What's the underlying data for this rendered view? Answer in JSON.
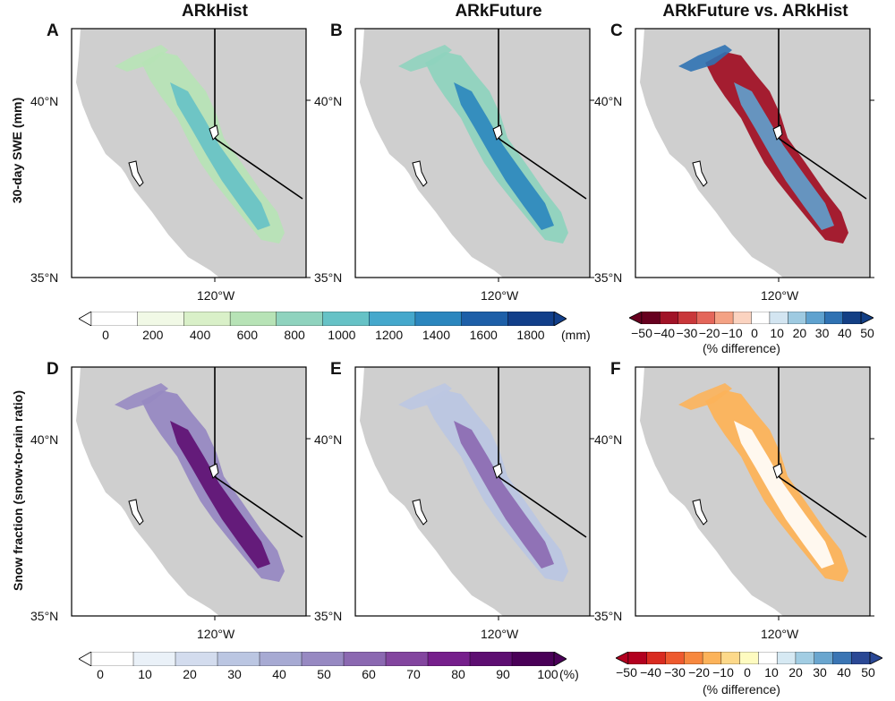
{
  "columns": [
    "ARkHist",
    "ARkFuture",
    "ARkFuture vs. ARkHist"
  ],
  "rows": [
    "30-day SWE (mm)",
    "Snow fraction (snow-to-rain ratio)"
  ],
  "panels": [
    {
      "letter": "A",
      "lat_top": "40°N",
      "lat_bottom": "35°N",
      "lon": "120°W",
      "palette": "swe",
      "level": 0.55
    },
    {
      "letter": "B",
      "lat_top": "40°N",
      "lat_bottom": "35°N",
      "lon": "120°W",
      "palette": "swe",
      "level": 0.8
    },
    {
      "letter": "C",
      "lat_top": "40°N",
      "lat_bottom": "35°N",
      "lon": "120°W",
      "palette": "diff_swe",
      "level": 0.5
    },
    {
      "letter": "D",
      "lat_top": "40°N",
      "lat_bottom": "35°N",
      "lon": "120°W",
      "palette": "frac",
      "level": 0.9
    },
    {
      "letter": "E",
      "lat_top": "40°N",
      "lat_bottom": "35°N",
      "lon": "120°W",
      "palette": "frac",
      "level": 0.55
    },
    {
      "letter": "F",
      "lat_top": "40°N",
      "lat_bottom": "35°N",
      "lon": "120°W",
      "palette": "diff_frac",
      "level": 0.3
    }
  ],
  "colorbars": {
    "swe": {
      "ticks": [
        "0",
        "200",
        "400",
        "600",
        "800",
        "1000",
        "1200",
        "1400",
        "1600",
        "1800"
      ],
      "unit": "(mm)",
      "colors": [
        "#ffffff",
        "#f1f9e6",
        "#d9f0c8",
        "#b7e3b6",
        "#8fd3be",
        "#66c2c6",
        "#45a8cc",
        "#2b86be",
        "#1d5fa8",
        "#123f8a"
      ]
    },
    "diff_swe": {
      "ticks": [
        "−50",
        "−40",
        "−30",
        "−20",
        "−10",
        "0",
        "10",
        "20",
        "30",
        "40",
        "50"
      ],
      "unit": "(% difference)",
      "colors": [
        "#67001f",
        "#a11327",
        "#c9373a",
        "#e4665a",
        "#f4a284",
        "#fbd3c0",
        "#ffffff",
        "#d3e5f1",
        "#9ecae1",
        "#5fa2cf",
        "#2f72b3",
        "#133f85"
      ]
    },
    "frac": {
      "ticks": [
        "0",
        "10",
        "20",
        "30",
        "40",
        "50",
        "60",
        "70",
        "80",
        "90",
        "100"
      ],
      "unit": "(%)",
      "colors": [
        "#ffffff",
        "#eaf1f8",
        "#d3dcee",
        "#bbc6e2",
        "#a7aad3",
        "#9789c2",
        "#8b68b1",
        "#83459f",
        "#761f8c",
        "#5e0e72",
        "#4a0058"
      ]
    },
    "diff_frac": {
      "ticks": [
        "−50",
        "−40",
        "−30",
        "−20",
        "−10",
        "0",
        "10",
        "20",
        "30",
        "40",
        "50"
      ],
      "unit": "(% difference)",
      "colors": [
        "#b3001f",
        "#d92b20",
        "#ee5a2e",
        "#f7883f",
        "#fcb35a",
        "#fdd98a",
        "#fefbc0",
        "#ffffff",
        "#d6e9f3",
        "#a2cde3",
        "#6aa6cf",
        "#3a75b4",
        "#2a4895"
      ]
    }
  },
  "colors": {
    "land": "#cfcfcf",
    "ocean": "#ffffff",
    "border": "#000000"
  }
}
